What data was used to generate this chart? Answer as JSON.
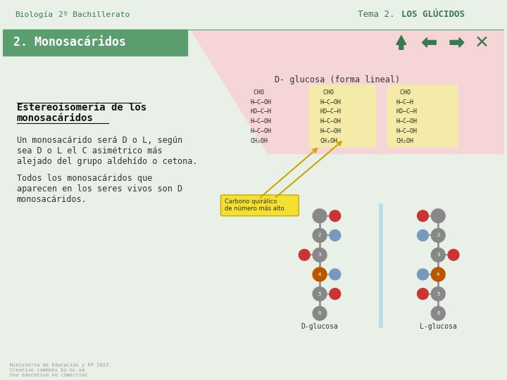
{
  "bg_color": "#e8f0e8",
  "header_text_left1": "Biología",
  "header_text_left2": "2º Bachillerato",
  "header_right_normal": "Tema 2. ",
  "header_right_bold": "LOS GLÚCIDOS",
  "nav_bar_bg": "#5a9e6f",
  "nav_bar_text": "2. Monosacáridos",
  "diagonal_pink_color": "#f5d5d5",
  "subtitle": "D- glucosa (forma lineal)",
  "heading_line1": "Estereoisomería de los",
  "heading_line2": "monosacáridos",
  "para1_lines": [
    "Un monosacárido será D o L, según",
    "sea D o L el C asimétrico más",
    "alejado del grupo aldehído o cetona."
  ],
  "para2_lines": [
    "Todos los monosacáridos que",
    "aparecen en los seres vivos son D",
    "monosacáridos."
  ],
  "text_color": "#333333",
  "heading_color": "#111111",
  "green_dark": "#3a7a50",
  "green_medium": "#5a9e6f",
  "icon_color": "#3a7a50",
  "bottom_text_color": "#999999",
  "label_box_text": "Carbono quirálico\nde número más alto.",
  "label_d": "D-glucosa",
  "label_l": "L-glucosa"
}
